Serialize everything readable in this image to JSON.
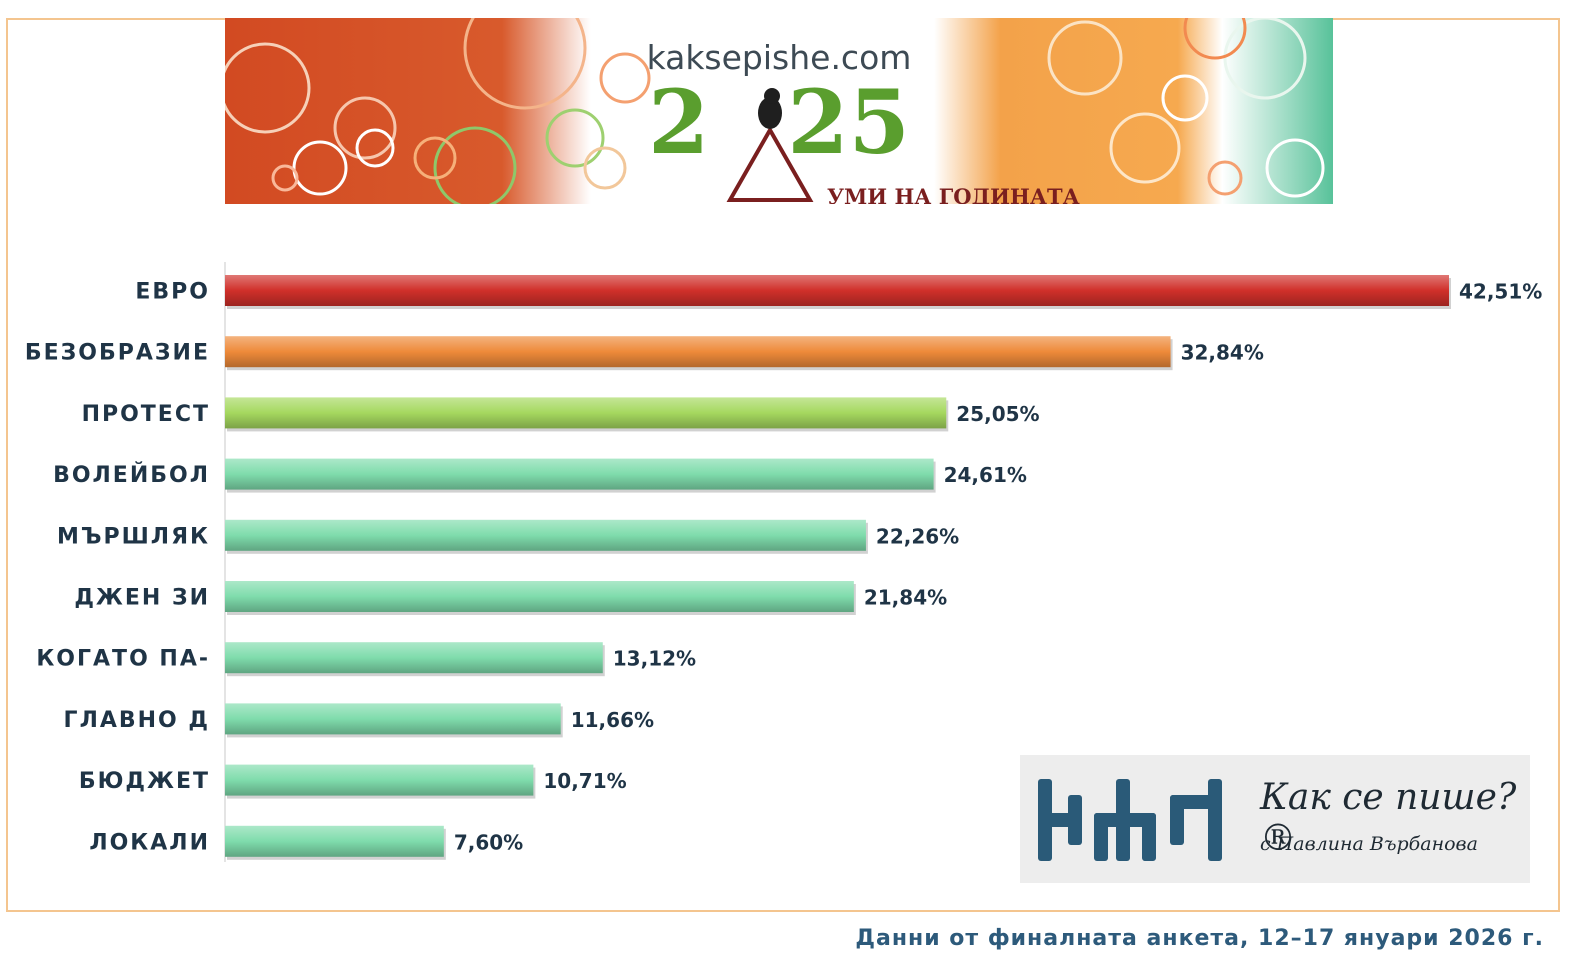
{
  "banner": {
    "site_url": "kaksepishe.com",
    "year": "2025",
    "year_left": "2",
    "year_right": "25",
    "tagline": "УМИ НА ГОДИНАТА"
  },
  "logo": {
    "title": "Как се пише?®",
    "subtitle": "с Павлина Върбанова"
  },
  "footnote": "Данни от финалната анкета, 12–17 януари 2026 г.",
  "colors": {
    "first": "#d0302a",
    "second": "#ee8a3a",
    "third": "#a5d85f",
    "rest": "#7fdcac"
  },
  "chart_data": {
    "type": "bar",
    "orientation": "horizontal",
    "categories": [
      "ЕВРО",
      "БЕЗОБРАЗИЕ",
      "ПРОТЕСТ",
      "ВОЛЕЙБОЛ",
      "МЪРШЛЯК",
      "ДЖЕН ЗИ",
      "КОГАТО ПА-",
      "ГЛАВНО Д",
      "БЮДЖЕТ",
      "ЛОКАЛИ"
    ],
    "values": [
      42.51,
      32.84,
      25.05,
      24.61,
      22.26,
      21.84,
      13.12,
      11.66,
      10.71,
      7.6
    ],
    "value_labels": [
      "42,51%",
      "32,84%",
      "25,05%",
      "24,61%",
      "22,26%",
      "21,84%",
      "13,12%",
      "11,66%",
      "10,71%",
      "7,60%"
    ],
    "bar_colors": [
      "#d0302a",
      "#ee8a3a",
      "#a5d85f",
      "#7fdcac",
      "#7fdcac",
      "#7fdcac",
      "#7fdcac",
      "#7fdcac",
      "#7fdcac",
      "#7fdcac"
    ],
    "title": "",
    "xlabel": "",
    "ylabel": "",
    "xlim": [
      0,
      42.51
    ],
    "grid": false,
    "legend": "none"
  }
}
